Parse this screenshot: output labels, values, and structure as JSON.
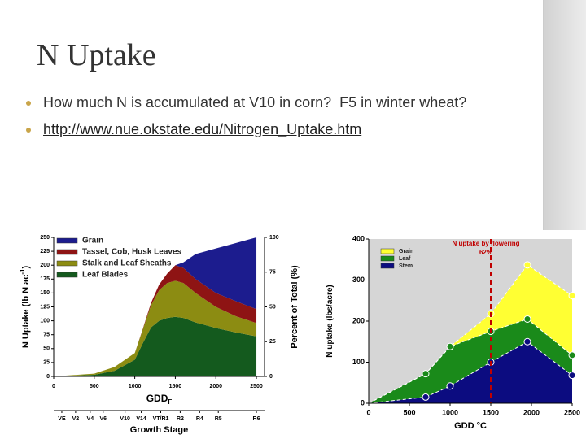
{
  "header": {
    "title": "N Uptake"
  },
  "bullets": [
    "How much N is accumulated at V10 in corn?  F5 in winter wheat?",
    "http://www.nue.okstate.edu/Nitrogen_Uptake.htm"
  ],
  "chart_data": [
    {
      "type": "area",
      "stacked": true,
      "xlabel": "GDD",
      "xlabel_sub": "F",
      "ylabel": "N Uptake (lb N ac",
      "ylabel_sup": "-1",
      "ylabel_end": ")",
      "y2label": "Percent of Total (%)",
      "x": [
        0,
        500,
        750,
        1000,
        1100,
        1200,
        1300,
        1400,
        1500,
        1600,
        1750,
        2000,
        2250,
        2500
      ],
      "series": [
        {
          "name": "Grain",
          "color": "#1c1c8e",
          "values": [
            0,
            0,
            0,
            0,
            0,
            0,
            0,
            0,
            0,
            10,
            45,
            80,
            105,
            129
          ]
        },
        {
          "name": "Tassel, Cob, Husk Leaves",
          "color": "#8e1414",
          "values": [
            0,
            0,
            0,
            0,
            1,
            4,
            10,
            17,
            28,
            27,
            25,
            25,
            27,
            25
          ]
        },
        {
          "name": "Stalk and Leaf Sheaths",
          "color": "#8c8c12",
          "values": [
            0,
            2,
            7,
            12,
            25,
            40,
            55,
            63,
            65,
            63,
            53,
            38,
            29,
            24
          ]
        },
        {
          "name": "Leaf Blades",
          "color": "#145a1e",
          "values": [
            0,
            3,
            10,
            30,
            60,
            88,
            100,
            105,
            107,
            105,
            97,
            87,
            79,
            72
          ]
        }
      ],
      "xlim": [
        0,
        2600
      ],
      "xticks": [
        0,
        500,
        1000,
        1500,
        2000,
        2500
      ],
      "ylim": [
        0,
        250
      ],
      "yticks": [
        0,
        25,
        50,
        75,
        100,
        125,
        150,
        175,
        200,
        225,
        250
      ],
      "y2lim": [
        0,
        100
      ],
      "y2ticks": [
        0,
        25,
        50,
        75,
        100
      ],
      "stage_label": "Growth Stage",
      "stages": [
        "VE",
        "V2",
        "V4",
        "V6",
        "V10",
        "V14",
        "VT/R1",
        "R2",
        "R4",
        "R5",
        "R6"
      ],
      "stage_x": [
        100,
        270,
        450,
        610,
        880,
        1080,
        1320,
        1560,
        1800,
        2030,
        2500
      ]
    },
    {
      "type": "area",
      "stacked": true,
      "markers": true,
      "background": "#d6d6d6",
      "xlabel": "GDD °C",
      "ylabel": "N uptake (lbs/acre)",
      "x": [
        0,
        700,
        1000,
        1500,
        1950,
        2500
      ],
      "series": [
        {
          "name": "Grain",
          "color": "#ffff33",
          "values": [
            0,
            0,
            0,
            43,
            132,
            145
          ]
        },
        {
          "name": "Leaf",
          "color": "#1a8a1a",
          "values": [
            0,
            57,
            96,
            75,
            55,
            49
          ]
        },
        {
          "name": "Stem",
          "color": "#0c0c80",
          "values": [
            0,
            15,
            42,
            100,
            150,
            68
          ]
        }
      ],
      "xlim": [
        0,
        2500
      ],
      "xticks": [
        0,
        500,
        1000,
        1500,
        2000,
        2500
      ],
      "ylim": [
        0,
        400
      ],
      "yticks": [
        0,
        100,
        200,
        300,
        400
      ],
      "annotation": {
        "x": 1500,
        "lines": [
          "N uptake by flowering",
          "62%"
        ],
        "color": "#c00000"
      }
    }
  ]
}
